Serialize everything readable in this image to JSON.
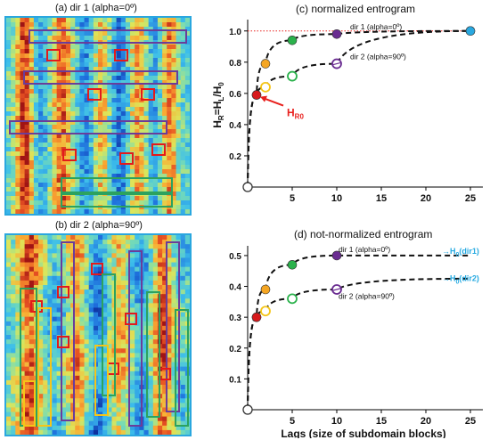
{
  "panels": {
    "a_title": "(a) dir 1 (alpha=0º)",
    "b_title": "(b) dir 2 (alpha=90º)"
  },
  "colors": {
    "map_border": "#2aa7df",
    "box_purple": "#6a3d9a",
    "box_red": "#e31a1c",
    "box_green": "#2ca25f",
    "box_yellow": "#f5c518",
    "marker_red": "#d7191c",
    "marker_orange": "#f5a623",
    "marker_green": "#2bb24c",
    "marker_purple": "#6a2c91",
    "marker_blue": "#29a8e0",
    "annotation_red": "#e8201d",
    "annotation_cyan": "#27aae1"
  },
  "chart_data": [
    {
      "type": "scatter",
      "title": "(c) normalized entrogram",
      "xlabel": "",
      "ylabel": "H_R=H_L/H_0",
      "xlim": [
        0,
        26
      ],
      "ylim": [
        0,
        1.05
      ],
      "xticks": [
        5,
        10,
        15,
        20,
        25
      ],
      "yticks": [
        0.2,
        0.4,
        0.6,
        0.8,
        1.0
      ],
      "grid": false,
      "reference_line": {
        "y": 1.0,
        "style": "dotted",
        "color": "#e8201d"
      },
      "series": [
        {
          "name": "dir 1 (alpha=0º)",
          "marker": "filled",
          "x": [
            0,
            1,
            2,
            5,
            10,
            25
          ],
          "y": [
            0.0,
            0.59,
            0.79,
            0.94,
            0.98,
            1.0
          ],
          "point_colors": [
            "#ffffff",
            "#d7191c",
            "#f5a623",
            "#2bb24c",
            "#6a2c91",
            "#29a8e0"
          ]
        },
        {
          "name": "dir 2 (alpha=90º)",
          "marker": "open",
          "x": [
            0,
            1,
            2,
            5,
            10,
            25
          ],
          "y": [
            0.0,
            0.59,
            0.64,
            0.71,
            0.79,
            1.0
          ],
          "point_colors": [
            "#ffffff",
            "#d7191c",
            "#f5c518",
            "#2bb24c",
            "#6a2c91",
            "#29a8e0"
          ]
        }
      ],
      "annotations": [
        {
          "text": "H",
          "sub": "R0",
          "x": 1,
          "y": 0.59
        }
      ]
    },
    {
      "type": "scatter",
      "title": "(d) not-normalized entrogram",
      "xlabel": "Lags (size of subdomain blocks)",
      "ylabel": "",
      "xlim": [
        0,
        26
      ],
      "ylim": [
        0,
        0.52
      ],
      "xticks": [
        5,
        10,
        15,
        20,
        25
      ],
      "yticks": [
        0.1,
        0.2,
        0.3,
        0.4,
        0.5
      ],
      "grid": false,
      "series": [
        {
          "name": "dir 1 (alpha=0º)",
          "marker": "filled",
          "x": [
            0,
            1,
            2,
            5,
            10
          ],
          "y": [
            0.0,
            0.3,
            0.39,
            0.47,
            0.5
          ],
          "point_colors": [
            "#ffffff",
            "#d7191c",
            "#f5a623",
            "#2bb24c",
            "#6a2c91"
          ],
          "asymptote_label": "→H",
          "asymptote_sub": "0(dir1)"
        },
        {
          "name": "dir 2 (alpha=90º)",
          "marker": "open",
          "x": [
            0,
            1,
            2,
            5,
            10
          ],
          "y": [
            0.0,
            0.3,
            0.32,
            0.36,
            0.39
          ],
          "point_colors": [
            "#ffffff",
            "#d7191c",
            "#f5c518",
            "#2bb24c",
            "#6a2c91"
          ],
          "asymptote_label": "→H",
          "asymptote_sub": "0(dir2)"
        }
      ]
    }
  ]
}
